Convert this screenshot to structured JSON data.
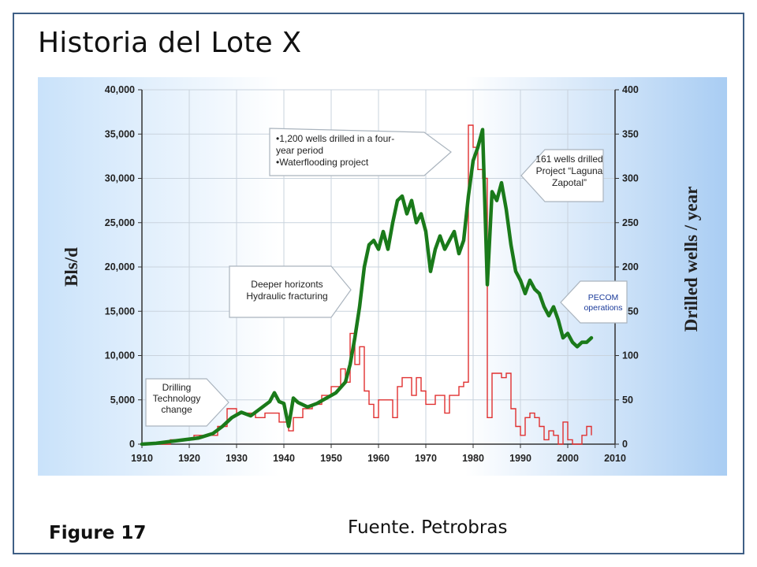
{
  "slide": {
    "title": "Historia del Lote X",
    "figure_label": "Figure 17",
    "source": "Fuente. Petrobras"
  },
  "colors": {
    "frame": "#3f5f86",
    "production_line": "#1a7a1a",
    "wells_line": "#e03030",
    "chart_bg_right": "#a9cdf3"
  },
  "chart_data": {
    "type": "line",
    "x_range": [
      1910,
      2010
    ],
    "x_ticks": [
      "1910",
      "1920",
      "1930",
      "1940",
      "1950",
      "1960",
      "1970",
      "1980",
      "1990",
      "2000",
      "2010"
    ],
    "y_left": {
      "label": "Bls/d",
      "range": [
        0,
        40000
      ],
      "ticks": [
        "0",
        "5,000",
        "10,000",
        "15,000",
        "20,000",
        "25,000",
        "30,000",
        "35,000",
        "40,000"
      ]
    },
    "y_right": {
      "label": "Drilled wells / year",
      "range": [
        0,
        400
      ],
      "ticks": [
        "0",
        "50",
        "100",
        "150",
        "200",
        "250",
        "300",
        "350",
        "400"
      ]
    },
    "grid": true,
    "series": [
      {
        "axis": "left",
        "points": [
          [
            1910,
            0
          ],
          [
            1913,
            100
          ],
          [
            1916,
            300
          ],
          [
            1919,
            500
          ],
          [
            1922,
            700
          ],
          [
            1925,
            1200
          ],
          [
            1927,
            2000
          ],
          [
            1929,
            3000
          ],
          [
            1931,
            3600
          ],
          [
            1933,
            3200
          ],
          [
            1935,
            4000
          ],
          [
            1937,
            4800
          ],
          [
            1938,
            5800
          ],
          [
            1939,
            4800
          ],
          [
            1940,
            4600
          ],
          [
            1941,
            2000
          ],
          [
            1942,
            5200
          ],
          [
            1943,
            4700
          ],
          [
            1945,
            4200
          ],
          [
            1947,
            4600
          ],
          [
            1949,
            5200
          ],
          [
            1951,
            5800
          ],
          [
            1953,
            7000
          ],
          [
            1954,
            9000
          ],
          [
            1955,
            12000
          ],
          [
            1956,
            15500
          ],
          [
            1957,
            20000
          ],
          [
            1958,
            22500
          ],
          [
            1959,
            23000
          ],
          [
            1960,
            22000
          ],
          [
            1961,
            24000
          ],
          [
            1962,
            22000
          ],
          [
            1963,
            25000
          ],
          [
            1964,
            27500
          ],
          [
            1965,
            28000
          ],
          [
            1966,
            26000
          ],
          [
            1967,
            27500
          ],
          [
            1968,
            25000
          ],
          [
            1969,
            26000
          ],
          [
            1970,
            24000
          ],
          [
            1971,
            19500
          ],
          [
            1972,
            22000
          ],
          [
            1973,
            23500
          ],
          [
            1974,
            22000
          ],
          [
            1975,
            23000
          ],
          [
            1976,
            24000
          ],
          [
            1977,
            21500
          ],
          [
            1978,
            23000
          ],
          [
            1979,
            28000
          ],
          [
            1980,
            32000
          ],
          [
            1981,
            33500
          ],
          [
            1982,
            35500
          ],
          [
            1983,
            18000
          ],
          [
            1984,
            28500
          ],
          [
            1985,
            27500
          ],
          [
            1986,
            29500
          ],
          [
            1987,
            26500
          ],
          [
            1988,
            22500
          ],
          [
            1989,
            19500
          ],
          [
            1990,
            18500
          ],
          [
            1991,
            17000
          ],
          [
            1992,
            18500
          ],
          [
            1993,
            17500
          ],
          [
            1994,
            17000
          ],
          [
            1995,
            15500
          ],
          [
            1996,
            14500
          ],
          [
            1997,
            15500
          ],
          [
            1998,
            14000
          ],
          [
            1999,
            12000
          ],
          [
            2000,
            12500
          ],
          [
            2001,
            11500
          ],
          [
            2002,
            11000
          ],
          [
            2003,
            11500
          ],
          [
            2004,
            11500
          ],
          [
            2005,
            12000
          ]
        ]
      },
      {
        "axis": "right",
        "points": [
          [
            1910,
            0
          ],
          [
            1916,
            0
          ],
          [
            1916,
            5
          ],
          [
            1921,
            5
          ],
          [
            1921,
            10
          ],
          [
            1926,
            10
          ],
          [
            1926,
            20
          ],
          [
            1928,
            20
          ],
          [
            1928,
            40
          ],
          [
            1930,
            40
          ],
          [
            1930,
            35
          ],
          [
            1934,
            35
          ],
          [
            1934,
            30
          ],
          [
            1936,
            30
          ],
          [
            1936,
            35
          ],
          [
            1939,
            35
          ],
          [
            1939,
            25
          ],
          [
            1941,
            25
          ],
          [
            1941,
            15
          ],
          [
            1942,
            15
          ],
          [
            1942,
            30
          ],
          [
            1944,
            30
          ],
          [
            1944,
            40
          ],
          [
            1946,
            40
          ],
          [
            1946,
            45
          ],
          [
            1948,
            45
          ],
          [
            1948,
            55
          ],
          [
            1950,
            55
          ],
          [
            1950,
            65
          ],
          [
            1952,
            65
          ],
          [
            1952,
            85
          ],
          [
            1953,
            85
          ],
          [
            1953,
            70
          ],
          [
            1954,
            70
          ],
          [
            1954,
            125
          ],
          [
            1955,
            125
          ],
          [
            1955,
            90
          ],
          [
            1956,
            90
          ],
          [
            1956,
            110
          ],
          [
            1957,
            110
          ],
          [
            1957,
            60
          ],
          [
            1958,
            60
          ],
          [
            1958,
            45
          ],
          [
            1959,
            45
          ],
          [
            1959,
            30
          ],
          [
            1960,
            30
          ],
          [
            1960,
            50
          ],
          [
            1963,
            50
          ],
          [
            1963,
            30
          ],
          [
            1964,
            30
          ],
          [
            1964,
            65
          ],
          [
            1965,
            65
          ],
          [
            1965,
            75
          ],
          [
            1967,
            75
          ],
          [
            1967,
            55
          ],
          [
            1968,
            55
          ],
          [
            1968,
            75
          ],
          [
            1969,
            75
          ],
          [
            1969,
            60
          ],
          [
            1970,
            60
          ],
          [
            1970,
            45
          ],
          [
            1972,
            45
          ],
          [
            1972,
            55
          ],
          [
            1974,
            55
          ],
          [
            1974,
            35
          ],
          [
            1975,
            35
          ],
          [
            1975,
            55
          ],
          [
            1977,
            55
          ],
          [
            1977,
            65
          ],
          [
            1978,
            65
          ],
          [
            1978,
            70
          ],
          [
            1979,
            70
          ],
          [
            1979,
            360
          ],
          [
            1980,
            360
          ],
          [
            1980,
            335
          ],
          [
            1981,
            335
          ],
          [
            1981,
            310
          ],
          [
            1982,
            310
          ],
          [
            1982,
            300
          ],
          [
            1983,
            300
          ],
          [
            1983,
            30
          ],
          [
            1984,
            30
          ],
          [
            1984,
            80
          ],
          [
            1986,
            80
          ],
          [
            1986,
            75
          ],
          [
            1987,
            75
          ],
          [
            1987,
            80
          ],
          [
            1988,
            80
          ],
          [
            1988,
            40
          ],
          [
            1989,
            40
          ],
          [
            1989,
            20
          ],
          [
            1990,
            20
          ],
          [
            1990,
            10
          ],
          [
            1991,
            10
          ],
          [
            1991,
            30
          ],
          [
            1992,
            30
          ],
          [
            1992,
            35
          ],
          [
            1993,
            35
          ],
          [
            1993,
            30
          ],
          [
            1994,
            30
          ],
          [
            1994,
            20
          ],
          [
            1995,
            20
          ],
          [
            1995,
            5
          ],
          [
            1996,
            5
          ],
          [
            1996,
            15
          ],
          [
            1997,
            15
          ],
          [
            1997,
            10
          ],
          [
            1998,
            10
          ],
          [
            1998,
            0
          ],
          [
            1999,
            0
          ],
          [
            1999,
            25
          ],
          [
            2000,
            25
          ],
          [
            2000,
            5
          ],
          [
            2001,
            5
          ],
          [
            2001,
            0
          ],
          [
            2003,
            0
          ],
          [
            2003,
            10
          ],
          [
            2004,
            10
          ],
          [
            2004,
            20
          ],
          [
            2005,
            20
          ],
          [
            2005,
            10
          ]
        ]
      }
    ],
    "annotations": [
      {
        "id": "drilling",
        "lines": [
          "Drilling",
          "Technology",
          "change"
        ]
      },
      {
        "id": "deeper",
        "lines": [
          "Deeper horizonts",
          "Hydraulic fracturing"
        ]
      },
      {
        "id": "wells1200",
        "lines": [
          "•1,200 wells drilled in a four-",
          "year period",
          "•Waterflooding project"
        ]
      },
      {
        "id": "laguna",
        "lines": [
          "161 wells drilled",
          "Project “Laguna",
          "Zapotal”"
        ]
      },
      {
        "id": "pecom",
        "lines": [
          "PECOM",
          "operations"
        ]
      }
    ]
  }
}
